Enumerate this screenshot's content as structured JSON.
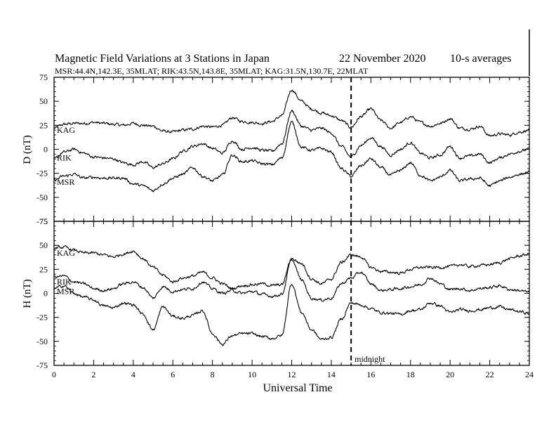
{
  "title": "Magnetic Field Variations at 3 Stations in Japan",
  "date": "22 November 2020",
  "averaging": "10-s averages",
  "stations_line": "MSR:44.4N,142.3E, 35MLAT;  RIK:43.5N,143.8E, 35MLAT;  KAG:31.5N,130.7E, 22MLAT",
  "colors": {
    "line": "#000000",
    "background": "#ffffff"
  },
  "chart_data": [
    {
      "type": "line",
      "panel": "top",
      "ylabel": "D (nT)",
      "xlabel": "",
      "xlim": [
        0,
        24
      ],
      "ylim": [
        -75,
        75
      ],
      "xticks": [
        0,
        2,
        4,
        6,
        8,
        10,
        12,
        14,
        16,
        18,
        20,
        22,
        24
      ],
      "yticks": [
        -75,
        -50,
        -25,
        0,
        25,
        50,
        75
      ],
      "x": [
        0,
        0.5,
        1,
        1.5,
        2,
        2.5,
        3,
        3.5,
        4,
        4.5,
        5,
        5.5,
        6,
        6.5,
        7,
        7.5,
        8,
        8.5,
        9,
        9.5,
        10,
        10.5,
        11,
        11.5,
        12,
        12.5,
        13,
        13.5,
        14,
        14.5,
        15,
        15.5,
        16,
        16.5,
        17,
        17.5,
        18,
        18.5,
        19,
        19.5,
        20,
        20.5,
        21,
        21.5,
        22,
        22.5,
        23,
        23.5,
        24
      ],
      "series": [
        {
          "name": "KAG",
          "values": [
            22,
            26,
            27,
            27,
            28,
            27,
            26,
            25,
            27,
            25,
            24,
            19,
            18,
            20,
            21,
            24,
            23,
            25,
            33,
            29,
            28,
            27,
            29,
            35,
            62,
            50,
            42,
            38,
            35,
            30,
            23,
            34,
            42,
            30,
            22,
            28,
            34,
            28,
            24,
            27,
            32,
            22,
            21,
            24,
            14,
            16,
            15,
            18,
            20
          ]
        },
        {
          "name": "RIK",
          "values": [
            -10,
            -3,
            0,
            -4,
            -8,
            -9,
            -10,
            -14,
            -16,
            -13,
            -19,
            -15,
            -10,
            -2,
            3,
            6,
            1,
            -4,
            9,
            0,
            2,
            -1,
            -2,
            6,
            40,
            24,
            20,
            22,
            17,
            3,
            -8,
            4,
            12,
            3,
            -6,
            0,
            7,
            -4,
            -9,
            -6,
            3,
            -9,
            -7,
            -5,
            -14,
            -9,
            -5,
            -2,
            0
          ]
        },
        {
          "name": "MSR",
          "values": [
            -32,
            -28,
            -26,
            -30,
            -29,
            -30,
            -30,
            -30,
            -36,
            -38,
            -43,
            -36,
            -30,
            -26,
            -19,
            -28,
            -33,
            -27,
            -6,
            -13,
            -12,
            -15,
            -16,
            -9,
            28,
            2,
            -1,
            1,
            -3,
            -20,
            -28,
            -17,
            -10,
            -19,
            -27,
            -22,
            -14,
            -27,
            -33,
            -29,
            -22,
            -33,
            -31,
            -30,
            -38,
            -33,
            -29,
            -26,
            -24
          ]
        }
      ],
      "annotation": ""
    },
    {
      "type": "line",
      "panel": "bottom",
      "ylabel": "H (nT)",
      "xlabel": "Universal Time",
      "xlim": [
        0,
        24
      ],
      "ylim": [
        -75,
        75
      ],
      "xticks": [
        0,
        2,
        4,
        6,
        8,
        10,
        12,
        14,
        16,
        18,
        20,
        22,
        24
      ],
      "yticks": [
        -75,
        -50,
        -25,
        0,
        25,
        50,
        75
      ],
      "x": [
        0,
        0.5,
        1,
        1.5,
        2,
        2.5,
        3,
        3.5,
        4,
        4.5,
        5,
        5.5,
        6,
        6.5,
        7,
        7.5,
        8,
        8.5,
        9,
        9.5,
        10,
        10.5,
        11,
        11.5,
        12,
        12.5,
        13,
        13.5,
        14,
        14.5,
        15,
        15.5,
        16,
        16.5,
        17,
        17.5,
        18,
        18.5,
        19,
        19.5,
        20,
        20.5,
        21,
        21.5,
        22,
        22.5,
        23,
        23.5,
        24
      ],
      "series": [
        {
          "name": "KAG",
          "values": [
            47,
            48,
            45,
            42,
            42,
            40,
            38,
            41,
            44,
            36,
            27,
            19,
            12,
            16,
            18,
            22,
            16,
            10,
            5,
            8,
            9,
            10,
            8,
            9,
            36,
            31,
            15,
            10,
            15,
            32,
            40,
            38,
            27,
            23,
            22,
            21,
            25,
            27,
            27,
            27,
            28,
            30,
            28,
            29,
            30,
            32,
            36,
            39,
            41
          ]
        },
        {
          "name": "RIK",
          "values": [
            17,
            18,
            12,
            10,
            5,
            3,
            5,
            10,
            12,
            6,
            -5,
            7,
            2,
            4,
            5,
            12,
            5,
            0,
            3,
            0,
            2,
            -1,
            -3,
            -1,
            35,
            14,
            -5,
            -7,
            -5,
            10,
            16,
            22,
            10,
            3,
            4,
            5,
            7,
            9,
            16,
            10,
            4,
            5,
            3,
            5,
            6,
            8,
            4,
            3,
            1
          ]
        },
        {
          "name": "MSR",
          "values": [
            5,
            8,
            0,
            -4,
            -7,
            -13,
            -15,
            -10,
            -12,
            -22,
            -38,
            -14,
            -24,
            -26,
            -23,
            -18,
            -42,
            -53,
            -44,
            -42,
            -42,
            -45,
            -47,
            -44,
            10,
            -20,
            -38,
            -48,
            -46,
            -27,
            -10,
            -12,
            -16,
            -20,
            -21,
            -22,
            -18,
            -17,
            -10,
            -13,
            -20,
            -17,
            -18,
            -17,
            -15,
            -14,
            -17,
            -19,
            -21
          ]
        }
      ],
      "annotation": "midnight",
      "annotation_x": 15
    }
  ],
  "midnight_ut": 15
}
